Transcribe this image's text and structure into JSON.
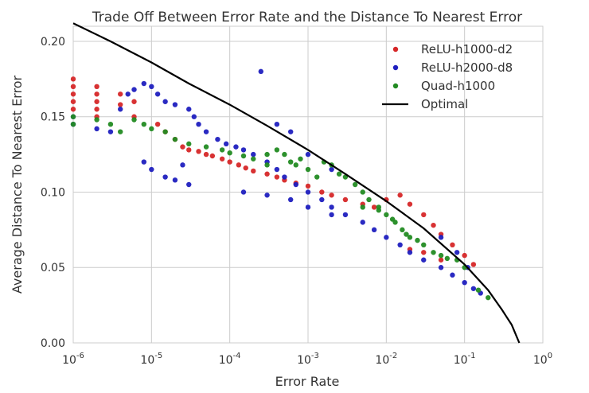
{
  "chart_data": {
    "type": "scatter",
    "title": "Trade Off Between Error Rate and the Distance To Nearest Error",
    "xlabel": "Error Rate",
    "ylabel": "Average Distance To Nearest Error",
    "xscale": "log",
    "xlim": [
      1e-06,
      1
    ],
    "ylim": [
      0,
      0.21
    ],
    "grid": true,
    "legend_position": "top-right",
    "x_ticks": [
      {
        "value": 1e-06,
        "base": "10",
        "exp": "-6"
      },
      {
        "value": 1e-05,
        "base": "10",
        "exp": "-5"
      },
      {
        "value": 0.0001,
        "base": "10",
        "exp": "-4"
      },
      {
        "value": 0.001,
        "base": "10",
        "exp": "-3"
      },
      {
        "value": 0.01,
        "base": "10",
        "exp": "-2"
      },
      {
        "value": 0.1,
        "base": "10",
        "exp": "-1"
      },
      {
        "value": 1,
        "base": "10",
        "exp": "0"
      }
    ],
    "y_ticks": [
      {
        "value": 0.0,
        "label": "0.00"
      },
      {
        "value": 0.05,
        "label": "0.05"
      },
      {
        "value": 0.1,
        "label": "0.10"
      },
      {
        "value": 0.15,
        "label": "0.15"
      },
      {
        "value": 0.2,
        "label": "0.20"
      }
    ],
    "series": [
      {
        "name": "ReLU-h1000-d2",
        "color": "#d62728",
        "kind": "points",
        "points": [
          [
            1e-06,
            0.175
          ],
          [
            1e-06,
            0.17
          ],
          [
            1e-06,
            0.165
          ],
          [
            1e-06,
            0.16
          ],
          [
            1e-06,
            0.155
          ],
          [
            2e-06,
            0.17
          ],
          [
            2e-06,
            0.165
          ],
          [
            2e-06,
            0.16
          ],
          [
            2e-06,
            0.155
          ],
          [
            2e-06,
            0.15
          ],
          [
            4e-06,
            0.165
          ],
          [
            4e-06,
            0.158
          ],
          [
            6e-06,
            0.16
          ],
          [
            6e-06,
            0.15
          ],
          [
            1.2e-05,
            0.145
          ],
          [
            1.5e-05,
            0.14
          ],
          [
            2e-05,
            0.135
          ],
          [
            2.5e-05,
            0.13
          ],
          [
            3e-05,
            0.128
          ],
          [
            4e-05,
            0.127
          ],
          [
            5e-05,
            0.125
          ],
          [
            6e-05,
            0.124
          ],
          [
            8e-05,
            0.122
          ],
          [
            0.0001,
            0.12
          ],
          [
            0.00013,
            0.118
          ],
          [
            0.00016,
            0.116
          ],
          [
            0.0002,
            0.114
          ],
          [
            0.0003,
            0.112
          ],
          [
            0.0004,
            0.11
          ],
          [
            0.0005,
            0.108
          ],
          [
            0.0007,
            0.106
          ],
          [
            0.001,
            0.104
          ],
          [
            0.0015,
            0.1
          ],
          [
            0.002,
            0.098
          ],
          [
            0.003,
            0.095
          ],
          [
            0.005,
            0.092
          ],
          [
            0.007,
            0.09
          ],
          [
            0.01,
            0.095
          ],
          [
            0.015,
            0.098
          ],
          [
            0.02,
            0.092
          ],
          [
            0.03,
            0.085
          ],
          [
            0.04,
            0.078
          ],
          [
            0.05,
            0.072
          ],
          [
            0.07,
            0.065
          ],
          [
            0.1,
            0.058
          ],
          [
            0.13,
            0.052
          ],
          [
            0.02,
            0.062
          ],
          [
            0.03,
            0.06
          ],
          [
            0.05,
            0.055
          ]
        ]
      },
      {
        "name": "ReLU-h2000-d8",
        "color": "#1f1fbf",
        "kind": "points",
        "points": [
          [
            1e-06,
            0.15
          ],
          [
            1e-06,
            0.145
          ],
          [
            2e-06,
            0.142
          ],
          [
            3e-06,
            0.14
          ],
          [
            4e-06,
            0.155
          ],
          [
            5e-06,
            0.165
          ],
          [
            6e-06,
            0.168
          ],
          [
            8e-06,
            0.172
          ],
          [
            1e-05,
            0.17
          ],
          [
            1.2e-05,
            0.165
          ],
          [
            1.5e-05,
            0.16
          ],
          [
            2e-05,
            0.158
          ],
          [
            3e-05,
            0.155
          ],
          [
            3.5e-05,
            0.15
          ],
          [
            8e-06,
            0.12
          ],
          [
            1e-05,
            0.115
          ],
          [
            1.5e-05,
            0.11
          ],
          [
            2e-05,
            0.108
          ],
          [
            3e-05,
            0.105
          ],
          [
            2.5e-05,
            0.118
          ],
          [
            4e-05,
            0.145
          ],
          [
            5e-05,
            0.14
          ],
          [
            7e-05,
            0.135
          ],
          [
            9e-05,
            0.132
          ],
          [
            0.00012,
            0.13
          ],
          [
            0.00015,
            0.128
          ],
          [
            0.0002,
            0.125
          ],
          [
            0.0003,
            0.12
          ],
          [
            0.0004,
            0.115
          ],
          [
            0.0005,
            0.11
          ],
          [
            0.0007,
            0.105
          ],
          [
            0.001,
            0.1
          ],
          [
            0.0015,
            0.095
          ],
          [
            0.002,
            0.09
          ],
          [
            0.003,
            0.085
          ],
          [
            0.005,
            0.08
          ],
          [
            0.007,
            0.075
          ],
          [
            0.01,
            0.07
          ],
          [
            0.015,
            0.065
          ],
          [
            0.02,
            0.06
          ],
          [
            0.03,
            0.055
          ],
          [
            0.05,
            0.05
          ],
          [
            0.07,
            0.045
          ],
          [
            0.1,
            0.04
          ],
          [
            0.13,
            0.036
          ],
          [
            0.16,
            0.033
          ],
          [
            0.0004,
            0.145
          ],
          [
            0.0006,
            0.14
          ],
          [
            0.001,
            0.125
          ],
          [
            0.002,
            0.115
          ],
          [
            0.0006,
            0.095
          ],
          [
            0.001,
            0.09
          ],
          [
            0.002,
            0.085
          ],
          [
            0.00015,
            0.1
          ],
          [
            0.0003,
            0.098
          ],
          [
            0.05,
            0.07
          ],
          [
            0.08,
            0.06
          ],
          [
            0.11,
            0.05
          ],
          [
            0.00025,
            0.18
          ]
        ]
      },
      {
        "name": "Quad-h1000",
        "color": "#228b22",
        "kind": "points",
        "points": [
          [
            1e-06,
            0.15
          ],
          [
            1e-06,
            0.145
          ],
          [
            2e-06,
            0.148
          ],
          [
            3e-06,
            0.145
          ],
          [
            4e-06,
            0.14
          ],
          [
            6e-06,
            0.148
          ],
          [
            8e-06,
            0.145
          ],
          [
            1e-05,
            0.142
          ],
          [
            1.5e-05,
            0.14
          ],
          [
            2e-05,
            0.135
          ],
          [
            3e-05,
            0.132
          ],
          [
            5e-05,
            0.13
          ],
          [
            8e-05,
            0.128
          ],
          [
            0.0001,
            0.126
          ],
          [
            0.00015,
            0.124
          ],
          [
            0.0002,
            0.122
          ],
          [
            0.0003,
            0.125
          ],
          [
            0.0004,
            0.128
          ],
          [
            0.0005,
            0.125
          ],
          [
            0.0006,
            0.12
          ],
          [
            0.0007,
            0.118
          ],
          [
            0.0008,
            0.122
          ],
          [
            0.001,
            0.115
          ],
          [
            0.0013,
            0.11
          ],
          [
            0.0016,
            0.12
          ],
          [
            0.002,
            0.118
          ],
          [
            0.0025,
            0.112
          ],
          [
            0.003,
            0.11
          ],
          [
            0.004,
            0.105
          ],
          [
            0.005,
            0.1
          ],
          [
            0.006,
            0.095
          ],
          [
            0.008,
            0.09
          ],
          [
            0.01,
            0.085
          ],
          [
            0.013,
            0.08
          ],
          [
            0.016,
            0.075
          ],
          [
            0.02,
            0.07
          ],
          [
            0.025,
            0.068
          ],
          [
            0.03,
            0.065
          ],
          [
            0.04,
            0.06
          ],
          [
            0.05,
            0.058
          ],
          [
            0.06,
            0.056
          ],
          [
            0.08,
            0.055
          ],
          [
            0.1,
            0.05
          ],
          [
            0.15,
            0.035
          ],
          [
            0.2,
            0.03
          ],
          [
            0.005,
            0.09
          ],
          [
            0.008,
            0.088
          ],
          [
            0.012,
            0.082
          ],
          [
            0.018,
            0.072
          ],
          [
            0.0003,
            0.118
          ]
        ]
      },
      {
        "name": "Optimal",
        "color": "#000000",
        "kind": "line",
        "points": [
          [
            1e-06,
            0.212
          ],
          [
            3e-06,
            0.2
          ],
          [
            1e-05,
            0.186
          ],
          [
            3e-05,
            0.172
          ],
          [
            0.0001,
            0.158
          ],
          [
            0.0003,
            0.144
          ],
          [
            0.001,
            0.128
          ],
          [
            0.003,
            0.112
          ],
          [
            0.01,
            0.094
          ],
          [
            0.03,
            0.076
          ],
          [
            0.1,
            0.052
          ],
          [
            0.2,
            0.035
          ],
          [
            0.3,
            0.022
          ],
          [
            0.4,
            0.012
          ],
          [
            0.5,
            0.0
          ]
        ]
      }
    ]
  }
}
